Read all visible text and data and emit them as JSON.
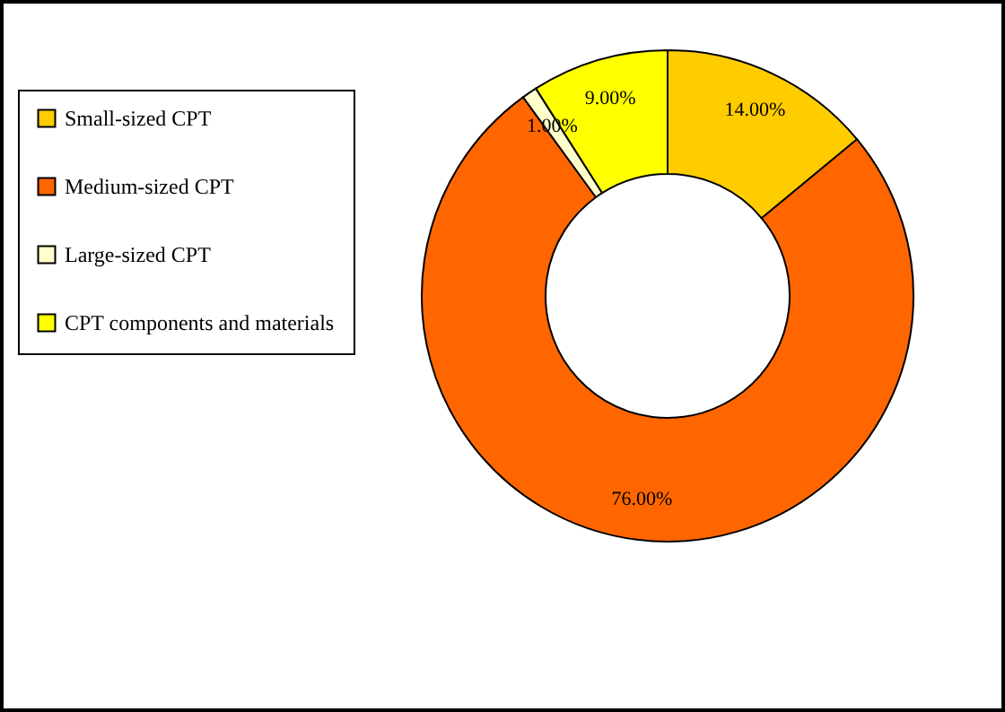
{
  "chart_data": {
    "type": "donut",
    "categories": [
      "Small-sized CPT",
      "Medium-sized CPT",
      "Large-sized CPT",
      "CPT components and materials"
    ],
    "values": [
      14,
      76,
      1,
      9
    ],
    "colors": [
      "#ffcc00",
      "#ff6600",
      "#ffffcc",
      "#ffff00"
    ],
    "value_labels": [
      "14.00%",
      "76.00%",
      "1.00%",
      "9.00%"
    ],
    "legend": "left"
  }
}
